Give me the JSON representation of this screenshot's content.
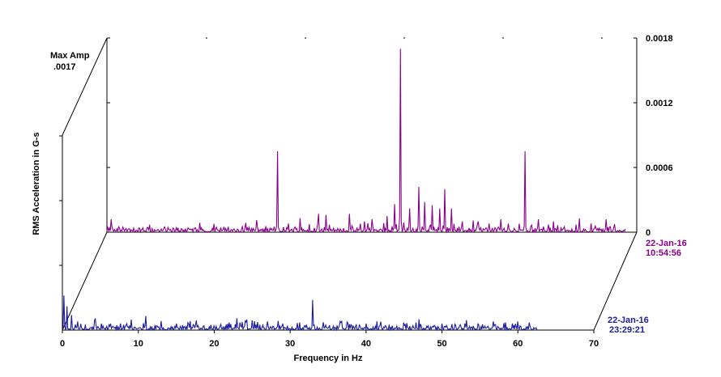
{
  "chart_data": {
    "type": "waterfall-line",
    "ylabel": "RMS Acceleration in G-s",
    "xlabel": "Frequency in Hz",
    "x_ticks": [
      "0",
      "10",
      "20",
      "30",
      "40",
      "50",
      "60",
      "70"
    ],
    "xlim": [
      0,
      70
    ],
    "y_ticks": [
      "0",
      "0.0006",
      "0.0012",
      "0.0018"
    ],
    "ylim": [
      0,
      0.0018
    ],
    "max_amp_label": "Max Amp",
    "max_amp_value": ".0017",
    "grid": false,
    "series": [
      {
        "date": "22-Jan-16",
        "time": "10:54:56",
        "color": "#8B008B",
        "peaks": [
          {
            "x": 0.5,
            "y": 0.00012
          },
          {
            "x": 1.5,
            "y": 5e-05
          },
          {
            "x": 11,
            "y": 3e-05
          },
          {
            "x": 16,
            "y": 5e-05
          },
          {
            "x": 20.5,
            "y": 3e-05
          },
          {
            "x": 22.5,
            "y": 0.00075
          },
          {
            "x": 24,
            "y": 8e-05
          },
          {
            "x": 25.5,
            "y": 0.00013
          },
          {
            "x": 28,
            "y": 0.00017
          },
          {
            "x": 29,
            "y": 0.00016
          },
          {
            "x": 32,
            "y": 0.00017
          },
          {
            "x": 34,
            "y": 0.0001
          },
          {
            "x": 35,
            "y": 0.00012
          },
          {
            "x": 37,
            "y": 0.00015
          },
          {
            "x": 38,
            "y": 0.00026
          },
          {
            "x": 38.8,
            "y": 0.0017
          },
          {
            "x": 40,
            "y": 0.00022
          },
          {
            "x": 41.2,
            "y": 0.00042
          },
          {
            "x": 42,
            "y": 0.00028
          },
          {
            "x": 43,
            "y": 0.00025
          },
          {
            "x": 44,
            "y": 0.00022
          },
          {
            "x": 44.6,
            "y": 0.0004
          },
          {
            "x": 45.5,
            "y": 0.00022
          },
          {
            "x": 47,
            "y": 0.0001
          },
          {
            "x": 49,
            "y": 0.0001
          },
          {
            "x": 52,
            "y": 0.00012
          },
          {
            "x": 53,
            "y": 8e-05
          },
          {
            "x": 55.2,
            "y": 0.00075
          },
          {
            "x": 57,
            "y": 0.00012
          },
          {
            "x": 59,
            "y": 0.0001
          },
          {
            "x": 62,
            "y": 7e-05
          },
          {
            "x": 64,
            "y": 8e-05
          },
          {
            "x": 66,
            "y": 0.00012
          }
        ],
        "x_end": 68.5
      },
      {
        "date": "22-Jan-16",
        "time": "23:29:21",
        "color": "#1C1CA0",
        "peaks": [
          {
            "x": 0.2,
            "y": 0.00032
          },
          {
            "x": 0.6,
            "y": 0.00022
          },
          {
            "x": 1.2,
            "y": 0.00014
          },
          {
            "x": 2,
            "y": 8e-05
          },
          {
            "x": 3,
            "y": 5e-05
          },
          {
            "x": 11,
            "y": 0.00013
          },
          {
            "x": 15,
            "y": 6e-05
          },
          {
            "x": 16.5,
            "y": 7e-05
          },
          {
            "x": 20,
            "y": 4e-05
          },
          {
            "x": 22,
            "y": 7e-05
          },
          {
            "x": 23,
            "y": 0.00011
          },
          {
            "x": 25,
            "y": 9e-05
          },
          {
            "x": 27,
            "y": 8e-05
          },
          {
            "x": 29,
            "y": 6e-05
          },
          {
            "x": 33,
            "y": 0.00028
          },
          {
            "x": 38,
            "y": 5e-05
          },
          {
            "x": 40,
            "y": 6e-05
          },
          {
            "x": 43,
            "y": 5e-05
          },
          {
            "x": 45,
            "y": 7e-05
          },
          {
            "x": 47,
            "y": 0.0001
          },
          {
            "x": 50,
            "y": 6e-05
          },
          {
            "x": 53,
            "y": 6e-05
          },
          {
            "x": 57,
            "y": 5e-05
          },
          {
            "x": 60,
            "y": 8e-05
          },
          {
            "x": 61.5,
            "y": 7e-05
          }
        ],
        "x_end": 62.5
      }
    ]
  }
}
